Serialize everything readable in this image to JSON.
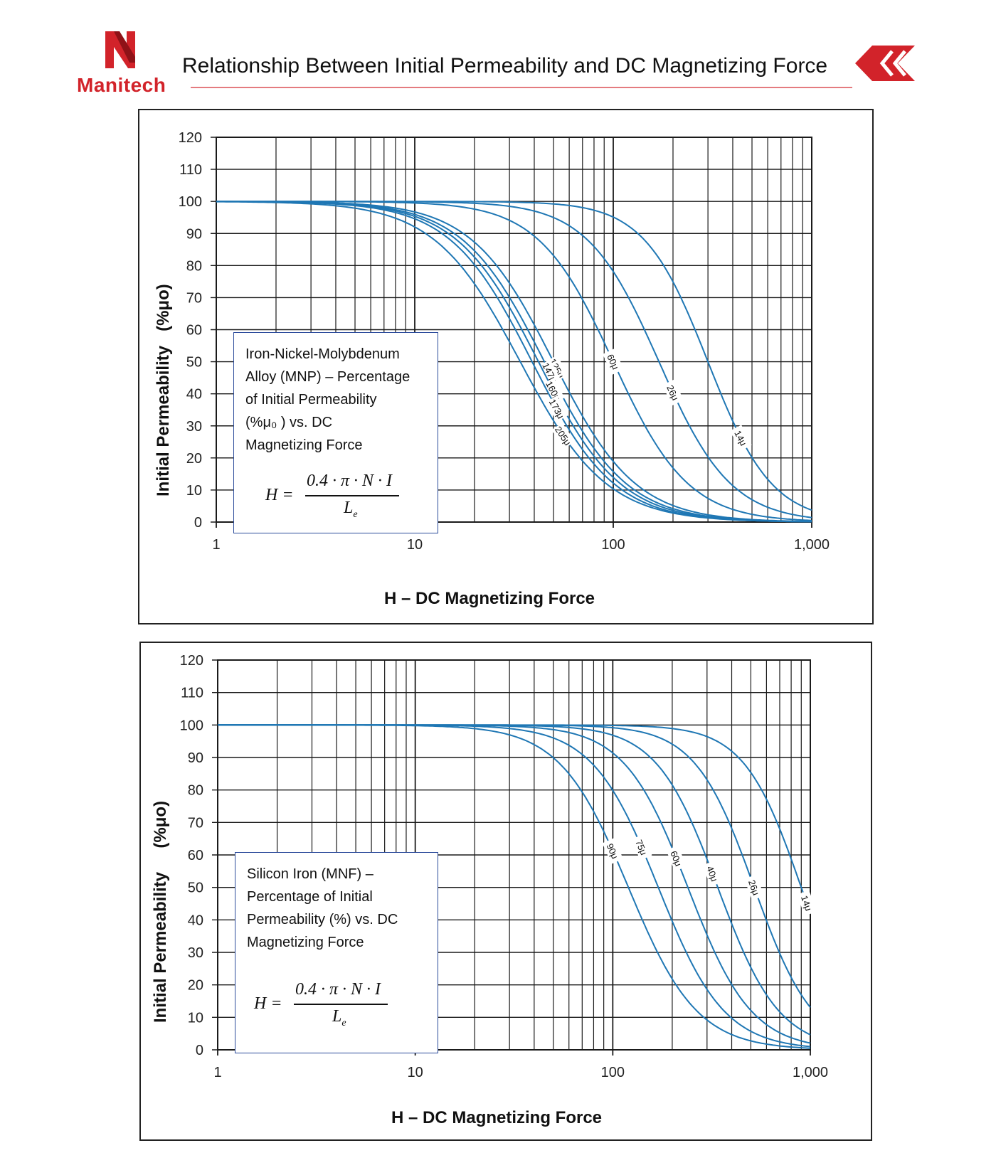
{
  "header": {
    "brand": "Manitech",
    "title": "Relationship Between Initial Permeability and DC Magnetizing Force",
    "brand_color": "#d2232a"
  },
  "colors": {
    "curve": "#1f77b4",
    "grid": "#1a1a1a",
    "note_border": "#2a4a9a"
  },
  "chart_data": [
    {
      "type": "line",
      "title": "Iron-Nickel-Molybdenum Alloy (MNP) – Percentage of Initial Permeability (%μ₀) vs. DC Magnetizing Force",
      "xlabel": "H – DC Magnetizing Force",
      "ylabel": "Initial Permeability",
      "ylabel_unit": "(%μo)",
      "xscale": "log",
      "xlim": [
        1,
        1000
      ],
      "ylim": [
        0,
        120
      ],
      "xticks": [
        "1",
        "10",
        "100",
        "1,000"
      ],
      "yticks": [
        "0",
        "10",
        "20",
        "30",
        "40",
        "50",
        "60",
        "70",
        "80",
        "90",
        "100",
        "110",
        "120"
      ],
      "grid": true,
      "note": {
        "lines": [
          "Iron-Nickel-Molybdenum",
          "Alloy (MNP) – Percentage",
          "of Initial Permeability",
          "(%μ₀  ) vs. DC",
          "Magnetizing Force"
        ],
        "formula_lhs": "H =",
        "formula_num": "0.4 · π · N · I",
        "formula_den": "L",
        "formula_den_sub": "e"
      },
      "series": [
        {
          "name": "14μ",
          "h50": 300,
          "p": 2.7,
          "label_x": 440
        },
        {
          "name": "26μ",
          "h50": 170,
          "p": 2.4,
          "label_x": 200
        },
        {
          "name": "60μ",
          "h50": 100,
          "p": 2.3,
          "label_x": 100
        },
        {
          "name": "125μ",
          "h50": 50,
          "p": 2.1,
          "label_x": 52
        },
        {
          "name": "147μ",
          "h50": 45,
          "p": 2.1,
          "label_x": 48
        },
        {
          "name": "160μ",
          "h50": 42,
          "p": 2.1,
          "label_x": 50
        },
        {
          "name": "173μ",
          "h50": 39,
          "p": 2.1,
          "label_x": 52
        },
        {
          "name": "205μ",
          "h50": 34,
          "p": 2.0,
          "label_x": 56
        }
      ],
      "curve_labels": [
        "14μ",
        "26μ",
        "60μ",
        "125μ",
        "147μ",
        "160μ",
        "173μ",
        "205μ"
      ]
    },
    {
      "type": "line",
      "title": "Silicon Iron (MNF) – Percentage of Initial Permeability (%) vs. DC Magnetizing Force",
      "xlabel": "H – DC Magnetizing Force",
      "ylabel": "Initial Permeability",
      "ylabel_unit": "(%μo)",
      "xscale": "log",
      "xlim": [
        1,
        1000
      ],
      "ylim": [
        0,
        120
      ],
      "xticks": [
        "1",
        "10",
        "100",
        "1,000"
      ],
      "yticks": [
        "0",
        "10",
        "20",
        "30",
        "40",
        "50",
        "60",
        "70",
        "80",
        "90",
        "100",
        "110",
        "120"
      ],
      "grid": true,
      "note": {
        "lines": [
          "Silicon Iron (MNF) –",
          "Percentage of Initial",
          "Permeability (%) vs. DC",
          "Magnetizing Force"
        ],
        "formula_lhs": "H =",
        "formula_num": "0.4 · π · N · I",
        "formula_den": "L",
        "formula_den_sub": "e"
      },
      "series": [
        {
          "name": "14μ",
          "h50": 900,
          "p": 3.0,
          "label_x": 960
        },
        {
          "name": "26μ",
          "h50": 520,
          "p": 2.9,
          "label_x": 520
        },
        {
          "name": "40μ",
          "h50": 340,
          "p": 2.8,
          "label_x": 320
        },
        {
          "name": "60μ",
          "h50": 240,
          "p": 2.7,
          "label_x": 210
        },
        {
          "name": "75μ",
          "h50": 170,
          "p": 2.6,
          "label_x": 140
        },
        {
          "name": "90μ",
          "h50": 120,
          "p": 2.5,
          "label_x": 100
        }
      ],
      "curve_labels": [
        "14μ",
        "26μ",
        "40μ",
        "60μ",
        "75μ",
        "90μ"
      ]
    }
  ]
}
